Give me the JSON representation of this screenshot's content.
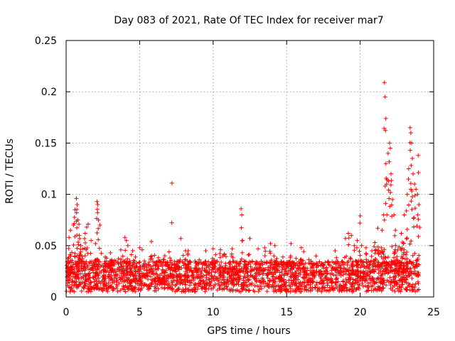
{
  "chart_data": {
    "type": "scatter",
    "title": "Day 083 of 2021, Rate Of TEC Index for receiver mar7",
    "xlabel": "GPS time / hours",
    "ylabel": "ROTI / TECUs",
    "xlim": [
      0,
      25
    ],
    "ylim": [
      0,
      0.25
    ],
    "xticks": [
      0,
      5,
      10,
      15,
      20,
      25
    ],
    "xtick_labels": [
      "0",
      "5",
      "10",
      "15",
      "20",
      "25"
    ],
    "yticks": [
      0,
      0.05,
      0.1,
      0.15,
      0.2,
      0.25
    ],
    "ytick_labels": [
      "0",
      "0.05",
      "0.1",
      "0.15",
      "0.2",
      "0.25"
    ],
    "grid": true,
    "marker": "plus",
    "color": "#ff0000",
    "series": [
      {
        "name": "ROTI",
        "points": [
          [
            0.2,
            0.058
          ],
          [
            0.3,
            0.065
          ],
          [
            0.5,
            0.07
          ],
          [
            0.6,
            0.085
          ],
          [
            0.7,
            0.096
          ],
          [
            0.75,
            0.09
          ],
          [
            0.8,
            0.075
          ],
          [
            0.9,
            0.06
          ],
          [
            1.0,
            0.05
          ],
          [
            1.3,
            0.062
          ],
          [
            1.4,
            0.068
          ],
          [
            1.5,
            0.071
          ],
          [
            1.7,
            0.055
          ],
          [
            2.0,
            0.052
          ],
          [
            2.1,
            0.093
          ],
          [
            2.15,
            0.09
          ],
          [
            2.2,
            0.075
          ],
          [
            2.3,
            0.07
          ],
          [
            4.0,
            0.058
          ],
          [
            4.1,
            0.055
          ],
          [
            4.2,
            0.05
          ],
          [
            5.0,
            0.048
          ],
          [
            5.8,
            0.054
          ],
          [
            7.0,
            0.044
          ],
          [
            7.2,
            0.111
          ],
          [
            7.8,
            0.057
          ],
          [
            8.3,
            0.045
          ],
          [
            9.5,
            0.045
          ],
          [
            10.0,
            0.047
          ],
          [
            10.5,
            0.046
          ],
          [
            11.3,
            0.047
          ],
          [
            11.9,
            0.086
          ],
          [
            11.95,
            0.08
          ],
          [
            12.0,
            0.055
          ],
          [
            12.5,
            0.057
          ],
          [
            13.5,
            0.048
          ],
          [
            13.9,
            0.052
          ],
          [
            14.2,
            0.05
          ],
          [
            15.3,
            0.052
          ],
          [
            16.0,
            0.048
          ],
          [
            17.0,
            0.04
          ],
          [
            18.3,
            0.045
          ],
          [
            19.0,
            0.057
          ],
          [
            19.2,
            0.062
          ],
          [
            19.4,
            0.06
          ],
          [
            19.6,
            0.05
          ],
          [
            19.8,
            0.055
          ],
          [
            20.0,
            0.079
          ],
          [
            20.1,
            0.05
          ],
          [
            20.4,
            0.048
          ],
          [
            20.8,
            0.045
          ],
          [
            21.0,
            0.053
          ],
          [
            21.2,
            0.067
          ],
          [
            21.5,
            0.065
          ],
          [
            21.6,
            0.08
          ],
          [
            21.65,
            0.209
          ],
          [
            21.7,
            0.195
          ],
          [
            21.75,
            0.13
          ],
          [
            21.8,
            0.11
          ],
          [
            21.9,
            0.14
          ],
          [
            22.0,
            0.15
          ],
          [
            22.05,
            0.145
          ],
          [
            22.1,
            0.12
          ],
          [
            22.2,
            0.095
          ],
          [
            22.3,
            0.08
          ],
          [
            22.4,
            0.065
          ],
          [
            22.8,
            0.062
          ],
          [
            23.0,
            0.08
          ],
          [
            23.2,
            0.1
          ],
          [
            23.3,
            0.125
          ],
          [
            23.4,
            0.165
          ],
          [
            23.45,
            0.16
          ],
          [
            23.5,
            0.15
          ],
          [
            23.55,
            0.135
          ],
          [
            23.6,
            0.12
          ],
          [
            23.7,
            0.11
          ],
          [
            23.8,
            0.105
          ],
          [
            23.9,
            0.1
          ],
          [
            23.95,
            0.138
          ],
          [
            24.0,
            0.09
          ]
        ],
        "baseline_band": {
          "x_range": [
            0.0,
            24.0
          ],
          "y_floor": 0.005,
          "typical_max": 0.035,
          "note": "dense band of + markers between about 0.005 and 0.035 across all hours"
        }
      }
    ]
  }
}
